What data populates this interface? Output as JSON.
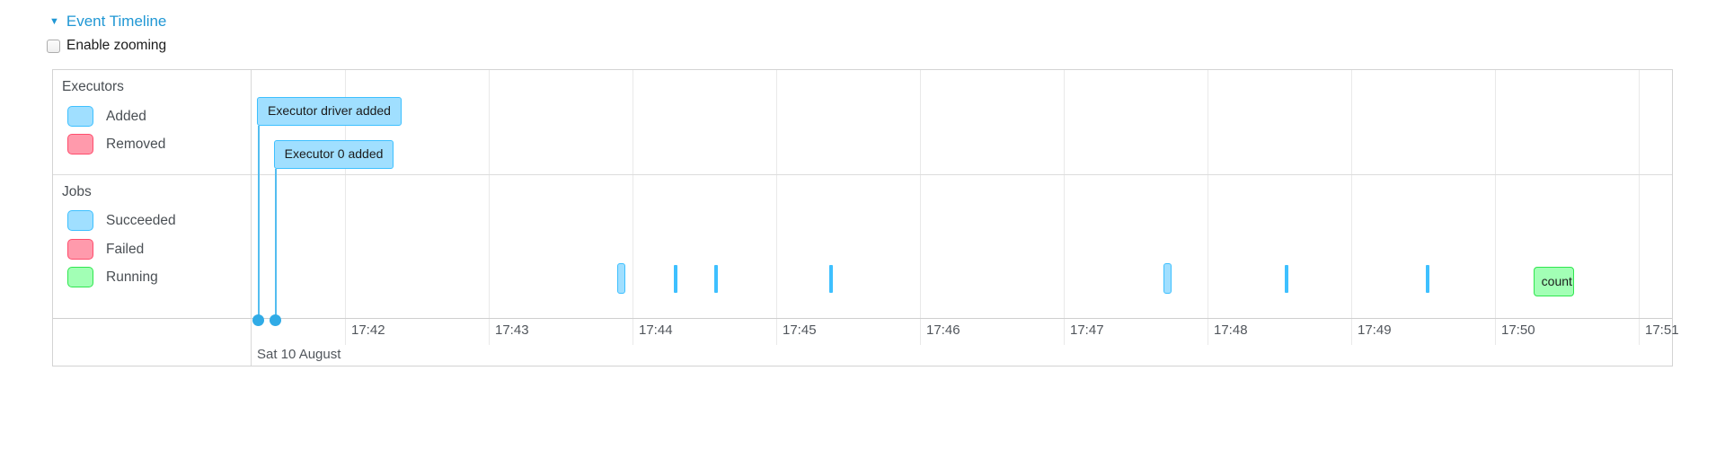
{
  "header": {
    "collapse_icon": "triangle-down",
    "title": "Event Timeline"
  },
  "controls": {
    "enable_zooming_label": "Enable zooming",
    "enable_zooming_checked": false
  },
  "colors": {
    "link": "#2097d4",
    "grid": "#e9e9e9",
    "blue_fill": "#a0dfff",
    "blue_border": "#3ec0ff",
    "pink_fill": "#ff9aac",
    "pink_border": "#ff4d6d",
    "green_fill": "#a2ffb5",
    "green_border": "#30e64f"
  },
  "timeline": {
    "groups": [
      {
        "name": "Executors",
        "legend": [
          {
            "label": "Added",
            "type": "added"
          },
          {
            "label": "Removed",
            "type": "removed"
          }
        ]
      },
      {
        "name": "Jobs",
        "legend": [
          {
            "label": "Succeeded",
            "type": "succeeded"
          },
          {
            "label": "Failed",
            "type": "failed"
          },
          {
            "label": "Running",
            "type": "running"
          }
        ]
      }
    ],
    "axis": {
      "ticks": [
        "17:42",
        "17:43",
        "17:44",
        "17:45",
        "17:46",
        "17:47",
        "17:48",
        "17:49",
        "17:50",
        "17:51"
      ],
      "major_label": "Sat 10 August"
    },
    "executor_events": [
      {
        "label": "Executor driver added",
        "type": "added",
        "time": "17:41:24"
      },
      {
        "label": "Executor 0 added",
        "type": "added",
        "time": "17:41:31"
      }
    ],
    "job_events": [
      {
        "type": "succeeded",
        "start": "17:43:54",
        "end": "17:43:57",
        "label": ""
      },
      {
        "type": "succeeded",
        "start": "17:44:18",
        "end": "17:44:19",
        "label": ""
      },
      {
        "type": "succeeded",
        "start": "17:44:35",
        "end": "17:44:36",
        "label": ""
      },
      {
        "type": "succeeded",
        "start": "17:45:23",
        "end": "17:45:24",
        "label": ""
      },
      {
        "type": "succeeded",
        "start": "17:47:42",
        "end": "17:47:45",
        "label": ""
      },
      {
        "type": "succeeded",
        "start": "17:48:33",
        "end": "17:48:34",
        "label": ""
      },
      {
        "type": "succeeded",
        "start": "17:49:32",
        "end": "17:49:33",
        "label": ""
      },
      {
        "type": "running",
        "start": "17:50:16",
        "end": "17:50:33",
        "label": "count"
      }
    ]
  }
}
